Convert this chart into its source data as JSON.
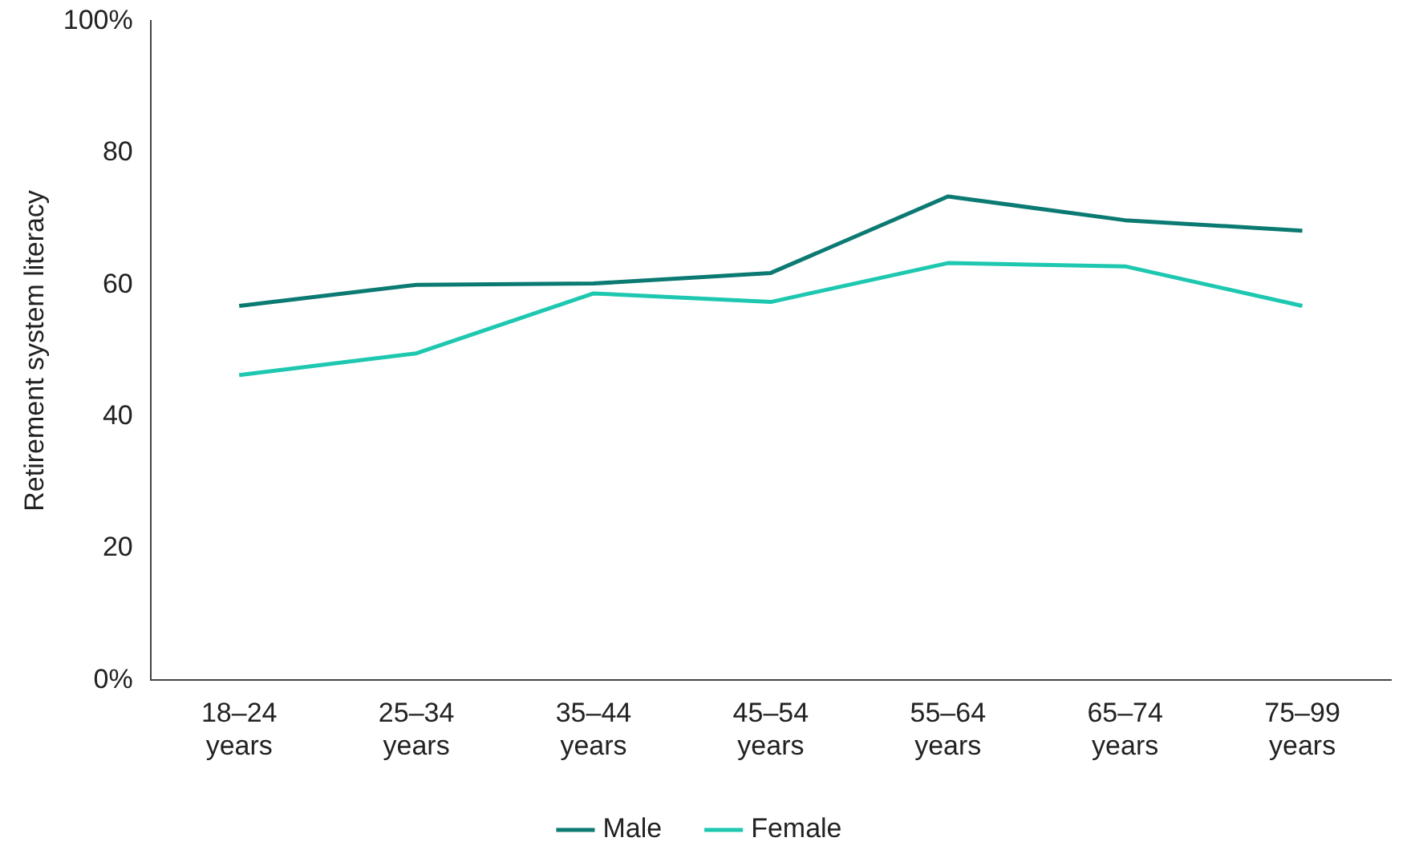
{
  "chart_data": {
    "type": "line",
    "ylabel": "Retirement system literacy",
    "categories": [
      "18–24 years",
      "25–34 years",
      "35–44 years",
      "45–54 years",
      "55–64 years",
      "65–74 years",
      "75–99 years"
    ],
    "series": [
      {
        "name": "Male",
        "color": "#0b7a72",
        "values": [
          56.8,
          60,
          60.2,
          61.8,
          73.4,
          69.8,
          68.2
        ]
      },
      {
        "name": "Female",
        "color": "#1ec8b0",
        "values": [
          46.3,
          49.6,
          58.7,
          57.4,
          63.3,
          62.8,
          56.8
        ]
      }
    ],
    "ylim": [
      0,
      100
    ],
    "yticks": [
      {
        "value": 0,
        "label": "0%"
      },
      20,
      40,
      60,
      80,
      {
        "value": 100,
        "label": "100%"
      }
    ],
    "grid": false,
    "legend": "bottom",
    "marker": "none",
    "line_style": "solid"
  }
}
